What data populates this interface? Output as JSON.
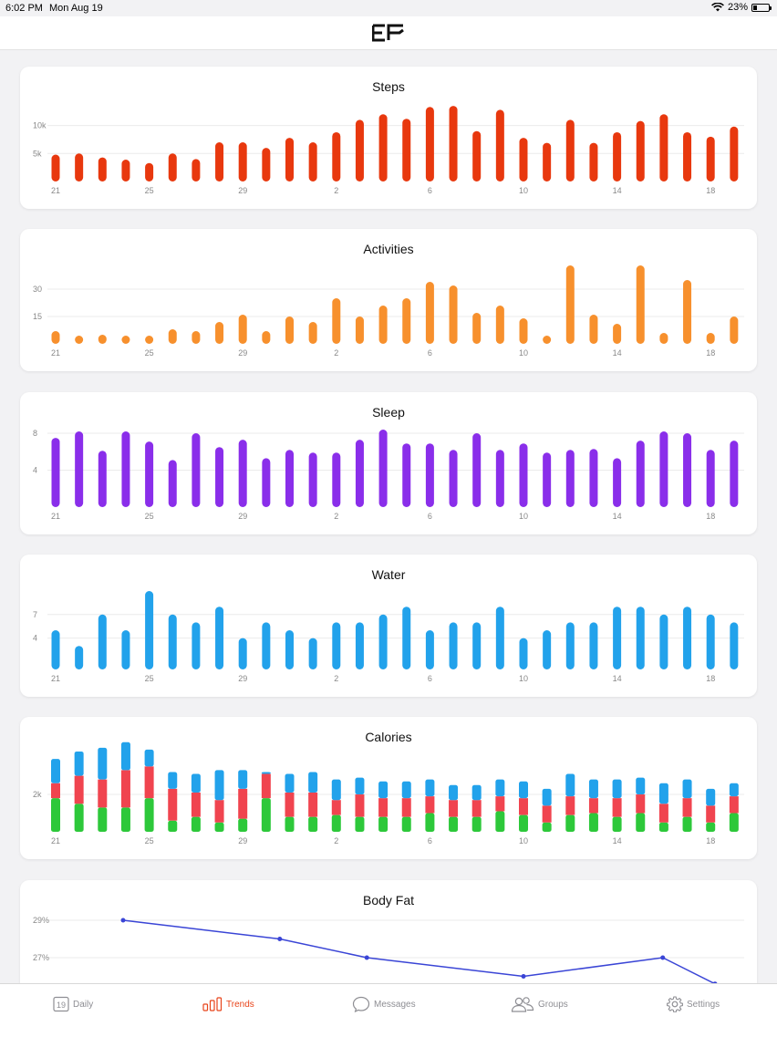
{
  "status_bar": {
    "time": "6:02 PM",
    "date": "Mon Aug 19",
    "battery": "23%"
  },
  "nav": {
    "logo": "EF"
  },
  "x_ticks": [
    "21",
    "25",
    "29",
    "2",
    "6",
    "10",
    "14",
    "18"
  ],
  "charts": [
    {
      "key": "steps",
      "title": "Steps",
      "type": "bar",
      "color": "#e8380e",
      "y_ticks": [
        {
          "label": "5k",
          "value": 5000
        },
        {
          "label": "10k",
          "value": 10000
        }
      ],
      "y_max": 14000,
      "values": [
        4800,
        5000,
        4300,
        3900,
        3300,
        5000,
        4000,
        7000,
        7000,
        6000,
        7800,
        7000,
        8800,
        11000,
        12000,
        11200,
        13300,
        13500,
        9000,
        12800,
        7800,
        6900,
        11000,
        6900,
        8800,
        10800,
        12000,
        8800,
        8000,
        9800
      ]
    },
    {
      "key": "activities",
      "title": "Activities",
      "type": "bar",
      "color": "#f7902d",
      "y_ticks": [
        {
          "label": "15",
          "value": 15
        },
        {
          "label": "30",
          "value": 30
        }
      ],
      "y_max": 43,
      "values": [
        7,
        4,
        5,
        4,
        3,
        8,
        7,
        12,
        16,
        7,
        15,
        12,
        25,
        15,
        21,
        25,
        34,
        32,
        17,
        21,
        14,
        4,
        43,
        16,
        11,
        43,
        6,
        35,
        6,
        15
      ]
    },
    {
      "key": "sleep",
      "title": "Sleep",
      "type": "bar",
      "color": "#8a2eea",
      "y_ticks": [
        {
          "label": "4",
          "value": 4
        },
        {
          "label": "8",
          "value": 8
        }
      ],
      "y_max": 8.5,
      "values": [
        7.5,
        8.2,
        6.1,
        8.2,
        7.1,
        5.1,
        8.0,
        6.5,
        7.3,
        5.3,
        6.2,
        5.9,
        5.9,
        7.3,
        8.4,
        6.9,
        6.9,
        6.2,
        8.0,
        6.2,
        6.9,
        5.9,
        6.2,
        6.3,
        5.3,
        7.2,
        8.2,
        8.0,
        6.2,
        7.2
      ]
    },
    {
      "key": "water",
      "title": "Water",
      "type": "bar",
      "color": "#22a2eb",
      "y_ticks": [
        {
          "label": "4",
          "value": 4
        },
        {
          "label": "7",
          "value": 7
        }
      ],
      "y_max": 10,
      "values": [
        5,
        3,
        7,
        5,
        10,
        7,
        6,
        8,
        4,
        6,
        5,
        4,
        6,
        6,
        7,
        8,
        5,
        6,
        6,
        8,
        4,
        5,
        6,
        6,
        8,
        8,
        7,
        8,
        7,
        6
      ]
    },
    {
      "key": "calories",
      "title": "Calories",
      "type": "stacked",
      "colors": [
        "#2dc83a",
        "#f0444f",
        "#22a2eb"
      ],
      "y_ticks": [
        {
          "label": "2k",
          "value": 2000
        }
      ],
      "y_max": 4200,
      "series": [
        {
          "values": [
            1800,
            1500,
            1300,
            1300,
            1800,
            600,
            800,
            500,
            700,
            1800,
            800,
            800,
            900,
            800,
            800,
            800,
            1000,
            800,
            800,
            1100,
            900,
            500,
            900,
            1000,
            800,
            1000,
            500,
            800,
            500,
            1000
          ]
        },
        {
          "values": [
            800,
            1500,
            1500,
            2000,
            1700,
            1700,
            1300,
            1200,
            1600,
            1300,
            1300,
            1300,
            800,
            1200,
            1000,
            1000,
            900,
            900,
            900,
            800,
            900,
            900,
            1000,
            800,
            1000,
            1000,
            1000,
            1000,
            900,
            900
          ]
        },
        {
          "values": [
            1300,
            1300,
            1700,
            1500,
            900,
            900,
            1000,
            1600,
            1000,
            100,
            1000,
            1100,
            1100,
            900,
            900,
            900,
            900,
            800,
            800,
            900,
            900,
            900,
            1200,
            1000,
            1000,
            900,
            1100,
            1000,
            900,
            700
          ]
        }
      ]
    },
    {
      "key": "body_fat",
      "title": "Body Fat",
      "type": "line",
      "color": "#3a45d6",
      "y_ticks": [
        {
          "label": "27%",
          "value": 27
        },
        {
          "label": "29%",
          "value": 29
        }
      ],
      "points": [
        {
          "x": 4,
          "y": 29.0
        },
        {
          "x": 13,
          "y": 28.0
        },
        {
          "x": 18,
          "y": 27.0
        },
        {
          "x": 27,
          "y": 26.0
        },
        {
          "x": 35,
          "y": 27.0
        },
        {
          "x": 38,
          "y": 25.6
        }
      ]
    }
  ],
  "tab_bar": {
    "items": [
      {
        "label": "Daily",
        "badge": "19",
        "active": false
      },
      {
        "label": "Trends",
        "active": true
      },
      {
        "label": "Messages",
        "active": false
      },
      {
        "label": "Groups",
        "active": false
      },
      {
        "label": "Settings",
        "active": false
      }
    ]
  }
}
